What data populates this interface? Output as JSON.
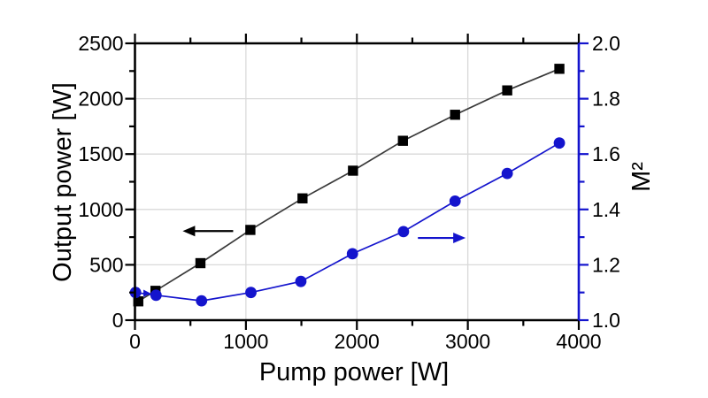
{
  "chart_data": {
    "type": "line",
    "title": "",
    "xlabel": "Pump power [W]",
    "ylabel_left": "Output power [W]",
    "ylabel_right": "M²",
    "xlim": [
      0,
      4000
    ],
    "ylim_left": [
      0,
      2500
    ],
    "ylim_right": [
      1.0,
      2.0
    ],
    "x_tick_values": [
      0,
      1000,
      2000,
      3000,
      4000
    ],
    "x_tick_labels": [
      "0",
      "1000",
      "2000",
      "3000",
      "4000"
    ],
    "x_minor_ticks": [
      500,
      1500,
      2500,
      3500
    ],
    "left_tick_values": [
      0,
      500,
      1000,
      1500,
      2000,
      2500
    ],
    "left_tick_labels": [
      "0",
      "500",
      "1000",
      "1500",
      "2000",
      "2500"
    ],
    "left_minor_ticks": [
      250,
      750,
      1250,
      1750,
      2250
    ],
    "right_tick_values": [
      1.0,
      1.2,
      1.4,
      1.6,
      1.8,
      2.0
    ],
    "right_tick_labels": [
      "1.0",
      "1.2",
      "1.4",
      "1.6",
      "1.8",
      "2.0"
    ],
    "right_minor_ticks": [
      1.1,
      1.3,
      1.5,
      1.7,
      1.9
    ],
    "grid": true,
    "legend": "none",
    "series": [
      {
        "name": "Output power",
        "axis": "left",
        "marker": "square",
        "marker_color": "#000000",
        "line_color": "#3a3a3a",
        "x": [
          30,
          185,
          590,
          1040,
          1510,
          1965,
          2415,
          2885,
          3355,
          3825
        ],
        "y": [
          170,
          265,
          515,
          815,
          1100,
          1350,
          1620,
          1855,
          2075,
          2270
        ]
      },
      {
        "name": "M²",
        "axis": "right",
        "marker": "circle",
        "marker_color": "#1414cd",
        "line_color": "#1414cd",
        "x": [
          5,
          190,
          600,
          1045,
          1495,
          1960,
          2420,
          2885,
          3355,
          3825
        ],
        "y": [
          1.1,
          1.09,
          1.07,
          1.1,
          1.14,
          1.24,
          1.32,
          1.43,
          1.53,
          1.64
        ]
      }
    ],
    "annotations": [
      {
        "type": "arrow",
        "points_to": "left-axis",
        "direction": "left",
        "axis": "left",
        "x_head": 430,
        "x_tail": 885,
        "y": 805,
        "color": "#000000",
        "size": "large"
      },
      {
        "type": "arrow",
        "points_to": "right-axis",
        "direction": "right",
        "axis": "right",
        "x_head": 2980,
        "x_tail": 2550,
        "y": 1.297,
        "color": "#1414cd",
        "size": "large"
      },
      {
        "type": "arrow",
        "points_to": "m2-curve-start",
        "direction": "right",
        "axis": "right",
        "x_head": 140,
        "x_tail": 95,
        "y": 1.097,
        "color": "#1414cd",
        "size": "small"
      }
    ],
    "axis_colors": {
      "left": "#000000",
      "bottom": "#000000",
      "top": "#000000",
      "right": "#1414cd"
    },
    "grid_color": "#d9d9d9",
    "background": "#ffffff"
  }
}
